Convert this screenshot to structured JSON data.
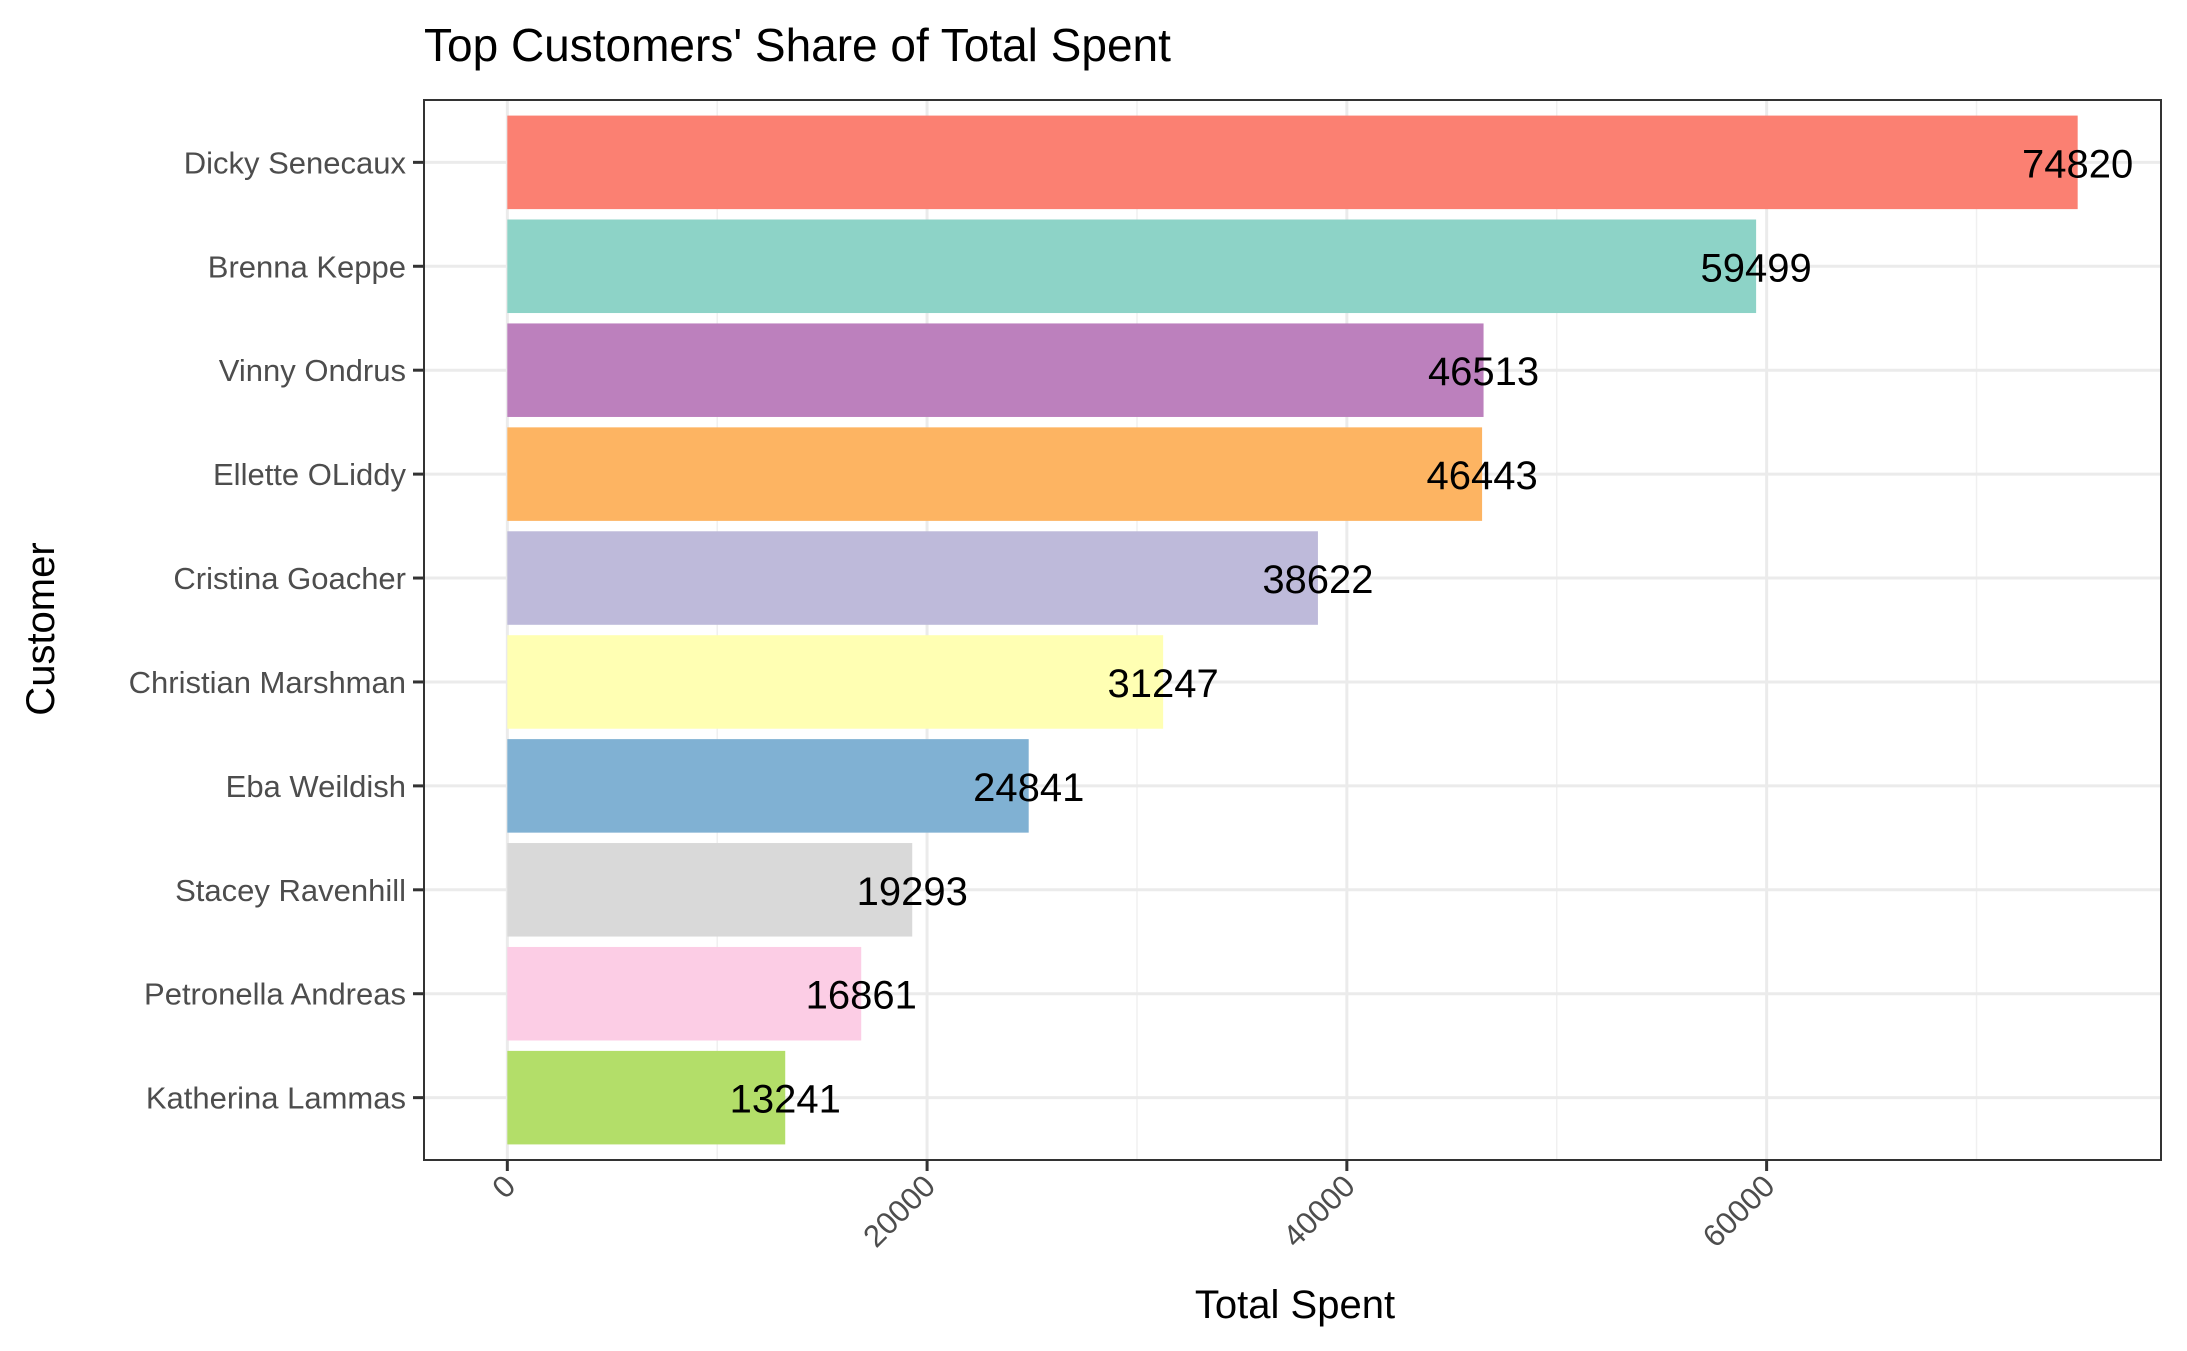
{
  "chart_data": {
    "type": "bar",
    "orientation": "horizontal",
    "title": "Top Customers' Share of Total Spent",
    "xlabel": "Total Spent",
    "ylabel": "Customer",
    "xlim": [
      -3970,
      78790
    ],
    "x_ticks": [
      0,
      20000,
      40000,
      60000
    ],
    "x_tick_labels": [
      "0",
      "20000",
      "40000",
      "60000"
    ],
    "x_tick_label_rotation": -45,
    "grid": true,
    "theme": "bw",
    "legend": "none",
    "categories": [
      "Dicky Senecaux",
      "Brenna Keppe",
      "Vinny Ondrus",
      "Ellette OLiddy",
      "Cristina Goacher",
      "Christian Marshman",
      "Eba Weildish",
      "Stacey Ravenhill",
      "Petronella Andreas",
      "Katherina Lammas"
    ],
    "values": [
      74820,
      59499,
      46513,
      46443,
      38622,
      31247,
      24841,
      19293,
      16861,
      13241
    ],
    "data_labels": [
      "74820",
      "59499",
      "46513",
      "46443",
      "38622",
      "31247",
      "24841",
      "19293",
      "16861",
      "13241"
    ],
    "colors": [
      "#FB8072",
      "#8DD3C7",
      "#BC80BD",
      "#FDB462",
      "#BEBADA",
      "#FFFFB3",
      "#80B1D3",
      "#D9D9D9",
      "#FCCDE5",
      "#B3DE69"
    ]
  }
}
